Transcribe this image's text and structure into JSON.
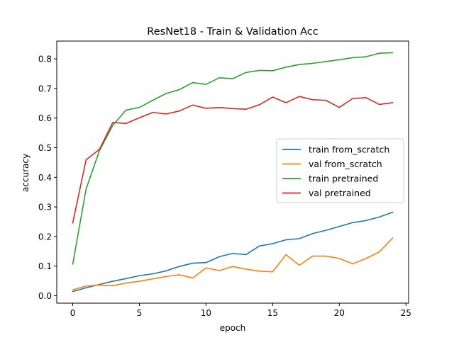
{
  "chart_data": {
    "type": "line",
    "title": "ResNet18 - Train & Validation Acc",
    "xlabel": "epoch",
    "ylabel": "accuracy",
    "xlim": [
      -1.2,
      25.2
    ],
    "ylim": [
      -0.025,
      0.86
    ],
    "xticks": [
      0,
      5,
      10,
      15,
      20,
      25
    ],
    "yticks": [
      0.0,
      0.1,
      0.2,
      0.3,
      0.4,
      0.5,
      0.6,
      0.7,
      0.8
    ],
    "ytick_labels": [
      "0.0",
      "0.1",
      "0.2",
      "0.3",
      "0.4",
      "0.5",
      "0.6",
      "0.7",
      "0.8"
    ],
    "grid": false,
    "legend_position": "center-right",
    "x": [
      0,
      1,
      2,
      3,
      4,
      5,
      6,
      7,
      8,
      9,
      10,
      11,
      12,
      13,
      14,
      15,
      16,
      17,
      18,
      19,
      20,
      21,
      22,
      23,
      24
    ],
    "series": [
      {
        "name": "train from_scratch",
        "color": "#1f77b4",
        "values": [
          0.014,
          0.027,
          0.038,
          0.049,
          0.058,
          0.068,
          0.074,
          0.084,
          0.099,
          0.11,
          0.112,
          0.132,
          0.143,
          0.139,
          0.168,
          0.176,
          0.189,
          0.193,
          0.21,
          0.221,
          0.234,
          0.247,
          0.254,
          0.266,
          0.282
        ]
      },
      {
        "name": "val from_scratch",
        "color": "#ff7f0e",
        "values": [
          0.02,
          0.033,
          0.036,
          0.034,
          0.043,
          0.049,
          0.057,
          0.065,
          0.071,
          0.06,
          0.094,
          0.085,
          0.099,
          0.09,
          0.083,
          0.081,
          0.139,
          0.103,
          0.134,
          0.134,
          0.126,
          0.108,
          0.126,
          0.148,
          0.195
        ]
      },
      {
        "name": "train pretrained",
        "color": "#2ca02c",
        "values": [
          0.107,
          0.36,
          0.49,
          0.575,
          0.627,
          0.636,
          0.66,
          0.683,
          0.696,
          0.72,
          0.714,
          0.736,
          0.733,
          0.754,
          0.761,
          0.76,
          0.772,
          0.781,
          0.785,
          0.791,
          0.797,
          0.804,
          0.807,
          0.819,
          0.821
        ]
      },
      {
        "name": "val pretrained",
        "color": "#d62728",
        "values": [
          0.246,
          0.459,
          0.494,
          0.585,
          0.582,
          0.601,
          0.619,
          0.614,
          0.624,
          0.644,
          0.633,
          0.636,
          0.632,
          0.63,
          0.645,
          0.671,
          0.652,
          0.673,
          0.662,
          0.66,
          0.636,
          0.666,
          0.669,
          0.646,
          0.652
        ]
      }
    ]
  }
}
